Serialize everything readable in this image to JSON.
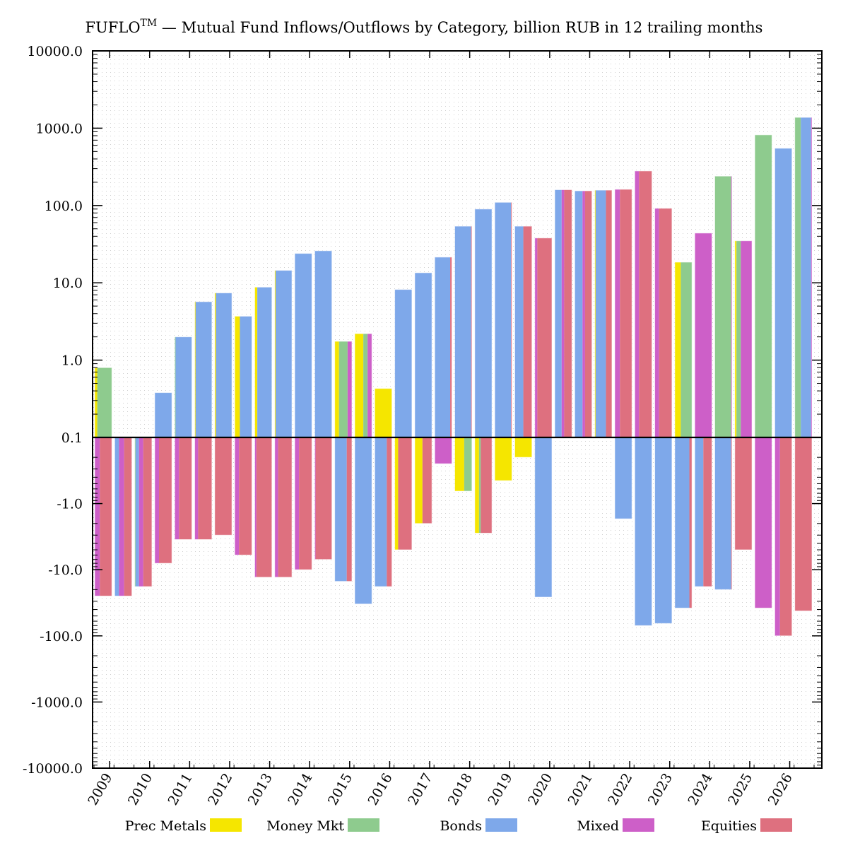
{
  "chart_data": {
    "type": "bar",
    "title": "FUFLO™ — Mutual Fund Inflows/Outflows by Category, billion RUB in 12 trailing months",
    "title_main": "FUFLO",
    "title_sup": "TM",
    "title_rest": " — Mutual Fund Inflows/Outflows by Category, billion RUB in 12 trailing months",
    "xlabel": "",
    "ylabel": "",
    "yscale": "symlog",
    "ylim": [
      -10000,
      10000
    ],
    "grid": true,
    "legend_position": "bottom",
    "y_ticks": [
      "10000.0",
      "1000.0",
      "100.0",
      "10.0",
      "1.0",
      "0.1",
      "-1.0",
      "-10.0",
      "-100.0",
      "-1000.0",
      "-10000.0"
    ],
    "x_tick_labels": [
      "2009",
      "2010",
      "2011",
      "2012",
      "2013",
      "2014",
      "2015",
      "2016",
      "2017",
      "2018",
      "2019",
      "2020",
      "2021",
      "2022",
      "2023",
      "2024",
      "2025",
      "2026"
    ],
    "series_names": [
      "Prec Metals",
      "Money Mkt",
      "Bonds",
      "Mixed",
      "Equities"
    ],
    "colors": {
      "Prec Metals": "#f5e600",
      "Money Mkt": "#8ecb8e",
      "Bonds": "#7ea8ea",
      "Mixed": "#cd5fc8",
      "Equities": "#de707f"
    },
    "periods": [
      {
        "pos": 0.8,
        "pos_mix": {
          "Prec Metals": 0.15,
          "Money Mkt": 0.85
        },
        "neg": -25,
        "neg_mix": {
          "Mixed": 0.3,
          "Equities": 0.7
        }
      },
      {
        "pos": 0,
        "pos_mix": {},
        "neg": -25,
        "neg_mix": {
          "Bonds": 0.25,
          "Mixed": 0.3,
          "Equities": 0.45
        }
      },
      {
        "pos": 0,
        "pos_mix": {},
        "neg": -18,
        "neg_mix": {
          "Money Mkt": 0.05,
          "Bonds": 0.2,
          "Mixed": 0.25,
          "Equities": 0.5
        }
      },
      {
        "pos": 0.38,
        "pos_mix": {
          "Bonds": 1.0
        },
        "neg": -8,
        "neg_mix": {
          "Mixed": 0.25,
          "Equities": 0.75
        }
      },
      {
        "pos": 2.0,
        "pos_mix": {
          "Money Mkt": 0.05,
          "Bonds": 0.95
        },
        "neg": -3.5,
        "neg_mix": {
          "Mixed": 0.25,
          "Equities": 0.75
        }
      },
      {
        "pos": 5.7,
        "pos_mix": {
          "Prec Metals": 0.05,
          "Bonds": 0.95
        },
        "neg": -3.5,
        "neg_mix": {
          "Mixed": 0.2,
          "Equities": 0.8
        }
      },
      {
        "pos": 7.4,
        "pos_mix": {
          "Prec Metals": 0.07,
          "Bonds": 0.93
        },
        "neg": -3.0,
        "neg_mix": {
          "Equities": 1.0
        }
      },
      {
        "pos": 3.7,
        "pos_mix": {
          "Prec Metals": 0.3,
          "Bonds": 0.7
        },
        "neg": -6,
        "neg_mix": {
          "Mixed": 0.25,
          "Equities": 0.75
        }
      },
      {
        "pos": 8.8,
        "pos_mix": {
          "Prec Metals": 0.15,
          "Bonds": 0.85
        },
        "neg": -13,
        "neg_mix": {
          "Mixed": 0.1,
          "Equities": 0.9
        }
      },
      {
        "pos": 14.5,
        "pos_mix": {
          "Prec Metals": 0.05,
          "Bonds": 0.95
        },
        "neg": -13,
        "neg_mix": {
          "Mixed": 0.2,
          "Equities": 0.8
        }
      },
      {
        "pos": 24,
        "pos_mix": {
          "Bonds": 1.0
        },
        "neg": -10,
        "neg_mix": {
          "Mixed": 0.25,
          "Equities": 0.75
        }
      },
      {
        "pos": 26,
        "pos_mix": {
          "Bonds": 1.0
        },
        "neg": -7,
        "neg_mix": {
          "Mixed": 0.05,
          "Equities": 0.95
        }
      },
      {
        "pos": 1.75,
        "pos_mix": {
          "Prec Metals": 0.25,
          "Money Mkt": 0.5,
          "Mixed": 0.25
        },
        "neg": -15,
        "neg_mix": {
          "Bonds": 0.7,
          "Equities": 0.3
        }
      },
      {
        "pos": 2.2,
        "pos_mix": {
          "Prec Metals": 0.5,
          "Money Mkt": 0.25,
          "Mixed": 0.25
        },
        "neg": -33,
        "neg_mix": {
          "Bonds": 1.0
        }
      },
      {
        "pos": 0.43,
        "pos_mix": {
          "Prec Metals": 1.0
        },
        "neg": -18,
        "neg_mix": {
          "Bonds": 0.7,
          "Equities": 0.3
        }
      },
      {
        "pos": 8.2,
        "pos_mix": {
          "Bonds": 1.0
        },
        "neg": -5,
        "neg_mix": {
          "Prec Metals": 0.2,
          "Equities": 0.8
        }
      },
      {
        "pos": 13.5,
        "pos_mix": {
          "Bonds": 1.0
        },
        "neg": -2.0,
        "neg_mix": {
          "Prec Metals": 0.45,
          "Equities": 0.55
        }
      },
      {
        "pos": 21.5,
        "pos_mix": {
          "Bonds": 0.9,
          "Equities": 0.1
        },
        "neg": -0.25,
        "neg_mix": {
          "Mixed": 1.0
        }
      },
      {
        "pos": 54,
        "pos_mix": {
          "Bonds": 0.95,
          "Equities": 0.05
        },
        "neg": -0.65,
        "neg_mix": {
          "Prec Metals": 0.55,
          "Money Mkt": 0.45
        }
      },
      {
        "pos": 90,
        "pos_mix": {
          "Bonds": 1.0
        },
        "neg": -2.8,
        "neg_mix": {
          "Prec Metals": 0.25,
          "Money Mkt": 0.1,
          "Equities": 0.65
        }
      },
      {
        "pos": 110,
        "pos_mix": {
          "Bonds": 0.95,
          "Equities": 0.05
        },
        "neg": -0.45,
        "neg_mix": {
          "Prec Metals": 1.0
        }
      },
      {
        "pos": 54,
        "pos_mix": {
          "Bonds": 0.5,
          "Equities": 0.5
        },
        "neg": -0.2,
        "neg_mix": {
          "Prec Metals": 1.0
        }
      },
      {
        "pos": 38,
        "pos_mix": {
          "Mixed": 0.15,
          "Equities": 0.85
        },
        "neg": -26,
        "neg_mix": {
          "Bonds": 1.0
        }
      },
      {
        "pos": 160,
        "pos_mix": {
          "Bonds": 0.4,
          "Mixed": 0.15,
          "Equities": 0.45
        },
        "neg": 0,
        "neg_mix": {}
      },
      {
        "pos": 155,
        "pos_mix": {
          "Bonds": 0.45,
          "Mixed": 0.15,
          "Equities": 0.4
        },
        "neg": 0,
        "neg_mix": {}
      },
      {
        "pos": 158,
        "pos_mix": {
          "Prec Metals": 0.05,
          "Bonds": 0.6,
          "Equities": 0.35
        },
        "neg": 0,
        "neg_mix": {}
      },
      {
        "pos": 162,
        "pos_mix": {
          "Mixed": 0.3,
          "Equities": 0.7
        },
        "neg": -1.7,
        "neg_mix": {
          "Bonds": 1.0
        }
      },
      {
        "pos": 280,
        "pos_mix": {
          "Mixed": 0.25,
          "Equities": 0.75
        },
        "neg": -70,
        "neg_mix": {
          "Bonds": 1.0
        }
      },
      {
        "pos": 92,
        "pos_mix": {
          "Mixed": 0.25,
          "Equities": 0.75
        },
        "neg": -65,
        "neg_mix": {
          "Bonds": 1.0
        }
      },
      {
        "pos": 18.5,
        "pos_mix": {
          "Prec Metals": 0.35,
          "Money Mkt": 0.65
        },
        "neg": -38,
        "neg_mix": {
          "Bonds": 0.85,
          "Equities": 0.15
        }
      },
      {
        "pos": 44,
        "pos_mix": {
          "Mixed": 1.0
        },
        "neg": -18,
        "neg_mix": {
          "Bonds": 0.5,
          "Equities": 0.5
        }
      },
      {
        "pos": 240,
        "pos_mix": {
          "Money Mkt": 0.95,
          "Mixed": 0.05
        },
        "neg": -20,
        "neg_mix": {
          "Bonds": 0.95,
          "Equities": 0.05
        }
      },
      {
        "pos": 35,
        "pos_mix": {
          "Prec Metals": 0.1,
          "Money Mkt": 0.25,
          "Mixed": 0.65
        },
        "neg": -5,
        "neg_mix": {
          "Equities": 1.0
        }
      },
      {
        "pos": 820,
        "pos_mix": {
          "Money Mkt": 1.0
        },
        "neg": -38,
        "neg_mix": {
          "Mixed": 1.0
        }
      },
      {
        "pos": 550,
        "pos_mix": {
          "Bonds": 1.0
        },
        "neg": -100,
        "neg_mix": {
          "Mixed": 0.3,
          "Equities": 0.7
        }
      },
      {
        "pos": 1380,
        "pos_mix": {
          "Money Mkt": 0.35,
          "Bonds": 0.6,
          "Mixed": 0.05
        },
        "neg": -42,
        "neg_mix": {
          "Equities": 1.0
        }
      }
    ]
  }
}
